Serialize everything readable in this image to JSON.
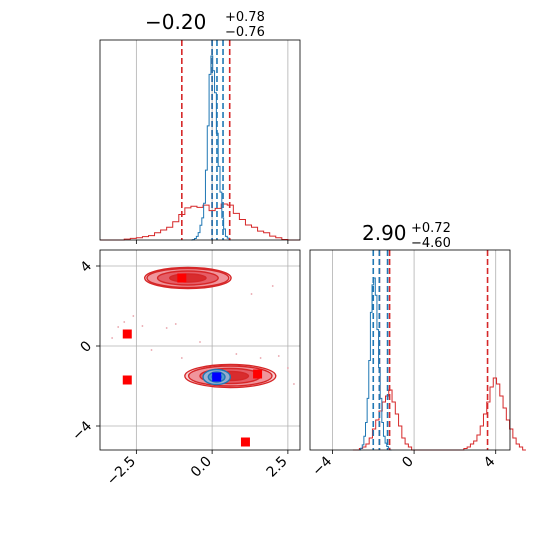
{
  "chart_data": {
    "type": "corner",
    "colors": {
      "red": "#d62728",
      "blue": "#1f77b4",
      "marker_red": "#ff0000",
      "marker_blue": "#0000ff",
      "grid": "#b0b0b0"
    },
    "grid": true,
    "param1": {
      "title": {
        "main": "−0.20",
        "upper": "+0.78",
        "lower": "−0.76"
      },
      "xlim": [
        -3.7,
        2.9
      ],
      "ticks": [
        -2.5,
        0.0,
        2.5
      ],
      "tick_labels": [
        "−2.5",
        "0.0",
        "2.5"
      ],
      "red_quantiles": [
        -1.0,
        0.0,
        0.58
      ],
      "blue_quantiles": [
        0.0,
        0.16,
        0.36
      ],
      "red_hist": {
        "x_start": -3.7,
        "bin_width": 0.2,
        "counts": [
          0,
          0,
          0,
          0,
          0.3,
          0.6,
          0.8,
          1.2,
          1.6,
          2.6,
          3.6,
          4.6,
          6.6,
          9.2,
          11.6,
          12.2,
          11.8,
          12.6,
          10.6,
          11.4,
          13,
          12.6,
          9.6,
          7.4,
          5.4,
          4.6,
          3.2,
          2.6,
          1.4,
          0.8,
          0.2,
          0,
          0
        ]
      },
      "blue_hist": {
        "x_start": -0.7,
        "bin_width": 0.06,
        "counts": [
          0,
          0.2,
          0.8,
          2,
          4,
          8,
          12,
          20,
          38,
          62,
          90,
          100,
          92,
          80,
          58,
          40,
          26,
          12,
          6,
          2,
          1,
          0
        ]
      }
    },
    "param2": {
      "title": {
        "main": "2.90",
        "upper": "+0.72",
        "lower": "−4.60"
      },
      "xlim": [
        -5.1,
        4.7
      ],
      "ticks": [
        -4,
        0,
        4
      ],
      "tick_labels": [
        "−4",
        "0",
        "4"
      ],
      "red_quantiles": [
        -1.7,
        -1.2,
        3.6
      ],
      "blue_quantiles": [
        -2.0,
        -1.7,
        -1.3
      ],
      "red_hist": {
        "x_start": -3.0,
        "bin_width": 0.16,
        "counts": [
          0,
          0,
          0.5,
          1,
          2,
          4,
          7,
          10,
          13,
          16,
          18,
          20,
          16,
          12,
          8,
          4,
          2,
          1,
          0,
          0,
          0,
          0,
          0,
          0,
          0,
          0,
          0,
          0,
          0,
          0,
          0,
          0,
          0,
          0,
          0.5,
          1,
          2,
          3,
          5,
          8,
          12,
          16,
          21,
          24,
          22,
          18,
          14,
          10,
          7,
          4,
          2,
          1,
          0
        ]
      },
      "blue_hist": {
        "x_start": -2.7,
        "bin_width": 0.08,
        "counts": [
          0,
          1,
          3,
          8,
          16,
          30,
          52,
          80,
          96,
          100,
          90,
          70,
          48,
          30,
          16,
          8,
          4,
          2,
          1,
          0
        ]
      }
    },
    "joint": {
      "ylim": [
        -5.2,
        4.8
      ],
      "y_ticks": [
        -4,
        0,
        4
      ],
      "y_tick_labels": [
        "−4",
        "0",
        "4"
      ],
      "red_markers": [
        {
          "x": -1.0,
          "y": 3.4
        },
        {
          "x": -2.8,
          "y": -1.7
        },
        {
          "x": -2.8,
          "y": 0.6
        },
        {
          "x": 1.5,
          "y": -1.4
        },
        {
          "x": 1.1,
          "y": -4.8
        }
      ],
      "blue_marker": {
        "x": 0.15,
        "y": -1.55
      },
      "red_contours": [
        {
          "cx": -0.8,
          "cy": 3.4,
          "rx": 2.85,
          "ry": 1.05,
          "level": 0
        },
        {
          "cx": -0.8,
          "cy": 3.4,
          "rx": 2.7,
          "ry": 0.95,
          "level": 1
        },
        {
          "cx": -0.8,
          "cy": 3.4,
          "rx": 2.0,
          "ry": 0.7,
          "level": 2
        },
        {
          "cx": -0.8,
          "cy": 3.4,
          "rx": 1.2,
          "ry": 0.4,
          "level": 3
        },
        {
          "cx": 0.6,
          "cy": -1.5,
          "rx": 3.0,
          "ry": 1.15,
          "level": 0
        },
        {
          "cx": 0.6,
          "cy": -1.5,
          "rx": 2.75,
          "ry": 1.0,
          "level": 1
        },
        {
          "cx": 0.6,
          "cy": -1.5,
          "rx": 2.0,
          "ry": 0.75,
          "level": 2
        },
        {
          "cx": 0.6,
          "cy": -1.5,
          "rx": 1.2,
          "ry": 0.45,
          "level": 3
        }
      ],
      "blue_contours": [
        {
          "cx": 0.15,
          "cy": -1.55,
          "rx": 0.9,
          "ry": 0.75,
          "level": 0
        },
        {
          "cx": 0.15,
          "cy": -1.55,
          "rx": 0.55,
          "ry": 0.5,
          "level": 1
        },
        {
          "cx": 0.15,
          "cy": -1.55,
          "rx": 0.3,
          "ry": 0.28,
          "level": 2
        }
      ],
      "scatter": [
        {
          "x": -2.6,
          "y": 1.5
        },
        {
          "x": -2.9,
          "y": 1.2
        },
        {
          "x": -3.1,
          "y": 0.95
        },
        {
          "x": -2.3,
          "y": 1.0
        },
        {
          "x": -1.2,
          "y": 1.1
        },
        {
          "x": -1.5,
          "y": 0.9
        },
        {
          "x": -2.0,
          "y": -0.2
        },
        {
          "x": -1.0,
          "y": -0.6
        },
        {
          "x": 1.6,
          "y": -0.6
        },
        {
          "x": 2.2,
          "y": -0.5
        },
        {
          "x": 2.5,
          "y": -1.1
        },
        {
          "x": 1.9,
          "y": -1.5
        },
        {
          "x": 2.0,
          "y": 3.0
        },
        {
          "x": 1.3,
          "y": 2.6
        },
        {
          "x": 0.8,
          "y": -0.4
        },
        {
          "x": -3.3,
          "y": 0.4
        },
        {
          "x": 2.7,
          "y": -1.9
        },
        {
          "x": -0.4,
          "y": 0.2
        }
      ]
    }
  }
}
